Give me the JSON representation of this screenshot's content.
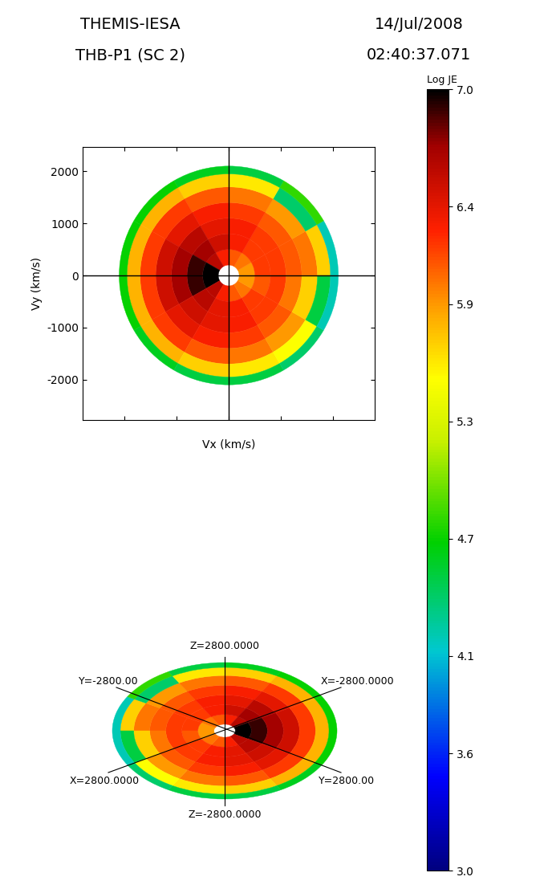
{
  "header": {
    "instrument": "THEMIS-IESA",
    "probe": "THB-P1 (SC 2)",
    "date": "14/Jul/2008",
    "time": "02:40:37.071"
  },
  "chart_data": {
    "type": "heatmap",
    "xlabel": "Vx (km/s)",
    "ylabel": "Vy (km/s)",
    "xlim": [
      -2800,
      2800
    ],
    "ylim": [
      -2770,
      2460
    ],
    "xticks": [
      -2000,
      -1000,
      0,
      1000,
      2000
    ],
    "yticks": [
      -2000,
      -1000,
      0,
      1000,
      2000
    ],
    "tick_labels": "y",
    "r_edges": [
      200,
      500,
      800,
      1100,
      1400,
      1700,
      1950,
      2100
    ],
    "theta_edges": [
      0,
      30,
      60,
      90,
      120,
      150,
      180,
      210,
      240,
      270,
      300,
      330,
      360
    ],
    "cells": [
      [
        5.9,
        6.2,
        6.2,
        6.1,
        6.0,
        5.7,
        4.2
      ],
      [
        6.0,
        6.2,
        6.2,
        6.1,
        5.9,
        4.4,
        4.8
      ],
      [
        6.1,
        6.3,
        6.3,
        6.2,
        6.0,
        5.6,
        4.5
      ],
      [
        6.3,
        6.5,
        6.4,
        6.3,
        6.1,
        5.7,
        4.6
      ],
      [
        6.6,
        6.7,
        6.6,
        6.4,
        6.2,
        5.8,
        4.7
      ],
      [
        7.0,
        6.9,
        6.7,
        6.5,
        6.2,
        5.8,
        4.7
      ],
      [
        7.0,
        6.9,
        6.7,
        6.5,
        6.2,
        5.8,
        4.7
      ],
      [
        6.6,
        6.6,
        6.5,
        6.4,
        6.2,
        5.8,
        4.6
      ],
      [
        6.3,
        6.4,
        6.4,
        6.3,
        6.1,
        5.7,
        4.5
      ],
      [
        6.1,
        6.3,
        6.3,
        6.2,
        6.0,
        5.6,
        4.5
      ],
      [
        6.0,
        6.2,
        6.2,
        6.1,
        5.9,
        5.5,
        4.4
      ],
      [
        5.9,
        6.1,
        6.2,
        6.0,
        5.7,
        4.5,
        4.2
      ]
    ],
    "colorbar_label": "Log JE",
    "colorbar_range": [
      3.0,
      7.0
    ],
    "colorbar_ticks": [
      3.0,
      3.6,
      4.1,
      4.7,
      5.3,
      5.9,
      6.4,
      7.0
    ]
  },
  "perspective": {
    "labels": {
      "z_max": "Z=2800.0000",
      "z_min": "Z=-2800.0000",
      "x_min": "X=-2800.0000",
      "x_max": "X=2800.0000",
      "y_min": "Y=-2800.00",
      "y_max": "Y=2800.00"
    }
  }
}
